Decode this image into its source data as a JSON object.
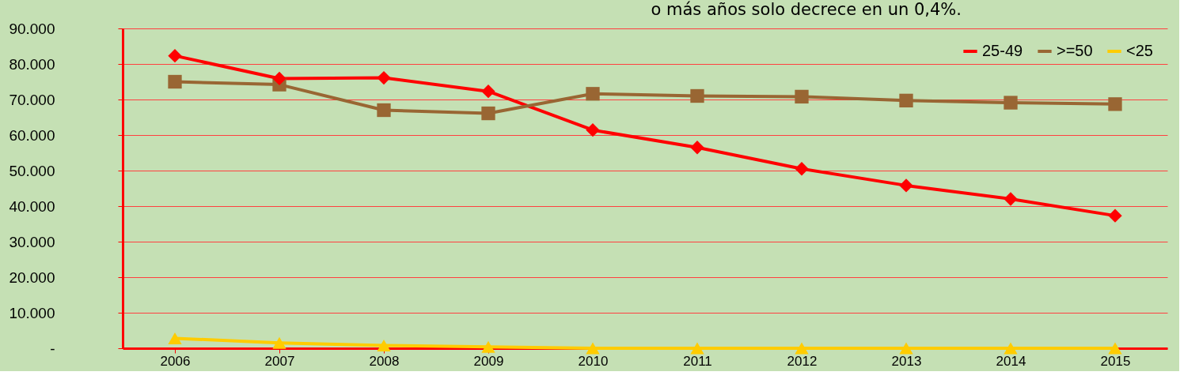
{
  "chart_data": {
    "type": "line",
    "title": "o más años solo decrece en un 0,4%.",
    "categories": [
      "2006",
      "2007",
      "2008",
      "2009",
      "2010",
      "2011",
      "2012",
      "2013",
      "2014",
      "2015"
    ],
    "series": [
      {
        "name": "25-49",
        "color": "#ff0000",
        "marker": "diamond",
        "values": [
          82300,
          75900,
          76100,
          72300,
          61400,
          56500,
          50500,
          45800,
          42000,
          37300
        ]
      },
      {
        "name": ">=50",
        "color": "#996633",
        "marker": "square",
        "values": [
          75000,
          74200,
          67000,
          66100,
          71600,
          71000,
          70800,
          69700,
          69100,
          68700
        ]
      },
      {
        "name": "<25",
        "color": "#ffcc00",
        "marker": "triangle",
        "values": [
          2800,
          1500,
          800,
          400,
          0,
          0,
          0,
          0,
          0,
          0
        ]
      }
    ],
    "ylim": [
      0,
      90000
    ],
    "yticks": [
      {
        "value": 0,
        "label": "-"
      },
      {
        "value": 10000,
        "label": "10.000"
      },
      {
        "value": 20000,
        "label": "20.000"
      },
      {
        "value": 30000,
        "label": "30.000"
      },
      {
        "value": 40000,
        "label": "40.000"
      },
      {
        "value": 50000,
        "label": "50.000"
      },
      {
        "value": 60000,
        "label": "60.000"
      },
      {
        "value": 70000,
        "label": "70.000"
      },
      {
        "value": 80000,
        "label": "80.000"
      },
      {
        "value": 90000,
        "label": "90.000"
      }
    ],
    "grid": "y",
    "legend": "top right",
    "line_style": "solid"
  }
}
